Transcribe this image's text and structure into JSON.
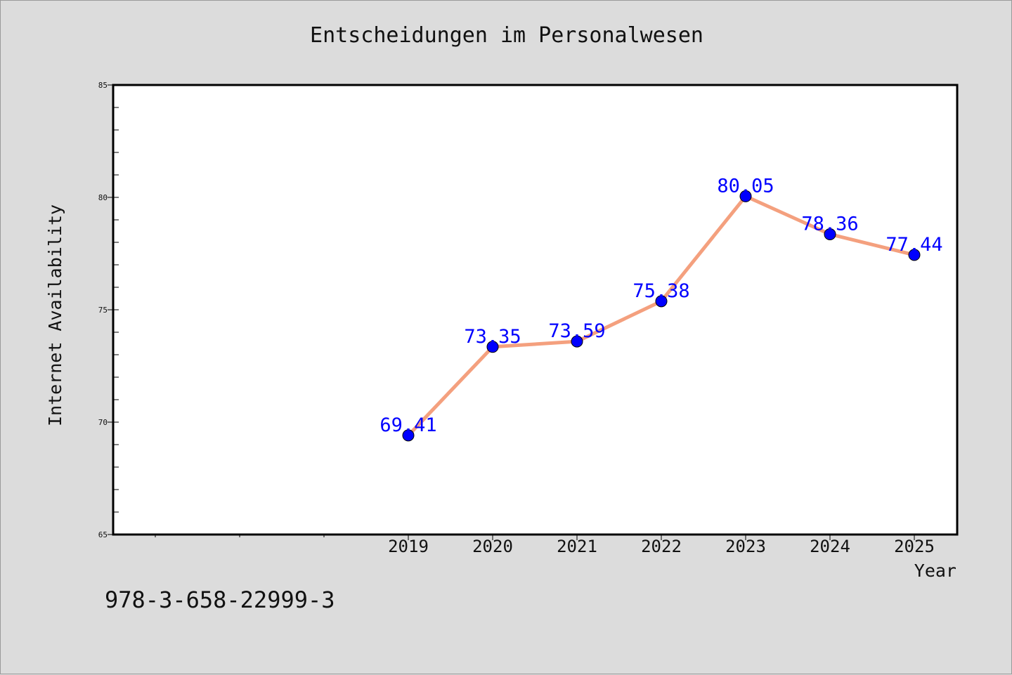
{
  "chart_data": {
    "type": "line",
    "title": "Entscheidungen im Personalwesen",
    "xlabel": "Year",
    "ylabel": "Internet Availability",
    "categories": [
      "2019",
      "2020",
      "2021",
      "2022",
      "2023",
      "2024",
      "2025"
    ],
    "series": [
      {
        "values": [
          69.41,
          73.35,
          73.59,
          75.38,
          80.05,
          78.36,
          77.44
        ],
        "labels": [
          "69.41",
          "73.35",
          "73.59",
          "75.38",
          "80.05",
          "78.36",
          "77.44"
        ]
      }
    ],
    "ylim": [
      65,
      85
    ],
    "yticks": [
      "65",
      "70",
      "75",
      "80",
      "85"
    ],
    "grid": false,
    "legend": "none",
    "colors": {
      "line": "#f4a07e",
      "marker": "#0000ff",
      "data_label": "#0000ff",
      "plot_bg": "#ffffff",
      "page_bg": "#dcdcdc"
    }
  },
  "footer": {
    "code": "978-3-658-22999-3"
  }
}
